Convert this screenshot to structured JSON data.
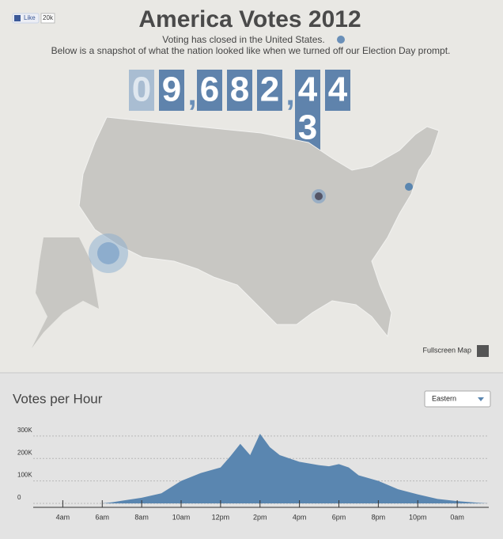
{
  "header": {
    "like": "Like",
    "like_count": "20k",
    "title": "America Votes 2012",
    "subtitle": "Voting has closed in the United States.",
    "note": "Below is a snapshot of what the nation looked like when we turned off our Election Day prompt."
  },
  "counter": {
    "digits": [
      "0",
      "9",
      ",",
      "6",
      "8",
      "2",
      ",",
      "4",
      "4"
    ],
    "rolling": "3"
  },
  "map": {
    "fullscreen": "Fullscreen Map"
  },
  "chart": {
    "type": "area",
    "title": "Votes per Hour",
    "dropdown": "Eastern",
    "color": "#5a86b0",
    "x": [
      6,
      6.5,
      7,
      8,
      9,
      10,
      11,
      12,
      12.5,
      13,
      13.5,
      14,
      14.5,
      15,
      16,
      17,
      17.5,
      18,
      18.5,
      19,
      20,
      21,
      22,
      23,
      24,
      25,
      25.6
    ],
    "values": [
      0,
      5000,
      12000,
      25000,
      45000,
      100000,
      135000,
      160000,
      210000,
      265000,
      215000,
      310000,
      250000,
      215000,
      185000,
      170000,
      165000,
      175000,
      160000,
      125000,
      100000,
      63000,
      40000,
      20000,
      10000,
      3000,
      0
    ],
    "xlim": [
      2.5,
      25.6
    ],
    "xticks": [
      {
        "value": 4,
        "label": "4am"
      },
      {
        "value": 6,
        "label": "6am"
      },
      {
        "value": 8,
        "label": "8am"
      },
      {
        "value": 10,
        "label": "10am"
      },
      {
        "value": 12,
        "label": "12pm"
      },
      {
        "value": 14,
        "label": "2pm"
      },
      {
        "value": 16,
        "label": "4pm"
      },
      {
        "value": 18,
        "label": "6pm"
      },
      {
        "value": 20,
        "label": "8pm"
      },
      {
        "value": 22,
        "label": "10pm"
      },
      {
        "value": 24,
        "label": "0am"
      }
    ],
    "ylim": [
      0,
      310000
    ],
    "yticks": [
      0,
      {
        "value": 100000,
        "label": "100K"
      },
      {
        "value": 200000,
        "label": "200K"
      },
      {
        "value": 300000,
        "label": "300K"
      }
    ],
    "grid": true
  }
}
